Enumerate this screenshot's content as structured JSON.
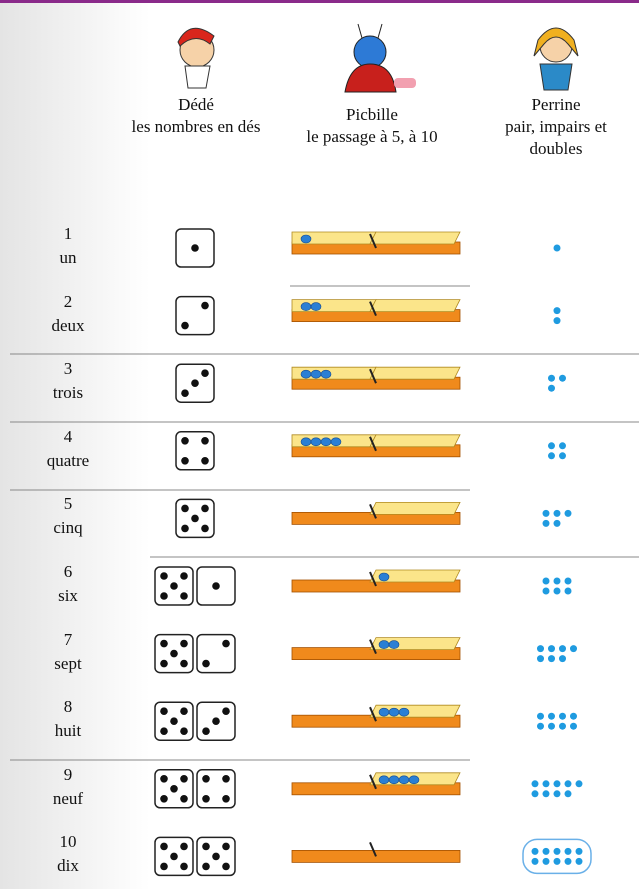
{
  "header": {
    "columns": [
      {
        "name": "Dédé",
        "description": "les nombres en dés"
      },
      {
        "name": "Picbille",
        "description": "le passage à 5, à 10"
      },
      {
        "name": "Perrine",
        "description": "pair, impairs et doubles"
      }
    ]
  },
  "rows": [
    {
      "number": 1,
      "word": "un"
    },
    {
      "number": 2,
      "word": "deux"
    },
    {
      "number": 3,
      "word": "trois"
    },
    {
      "number": 4,
      "word": "quatre"
    },
    {
      "number": 5,
      "word": "cinq"
    },
    {
      "number": 6,
      "word": "six"
    },
    {
      "number": 7,
      "word": "sept"
    },
    {
      "number": 8,
      "word": "huit"
    },
    {
      "number": 9,
      "word": "neuf"
    },
    {
      "number": 10,
      "word": "dix"
    }
  ]
}
